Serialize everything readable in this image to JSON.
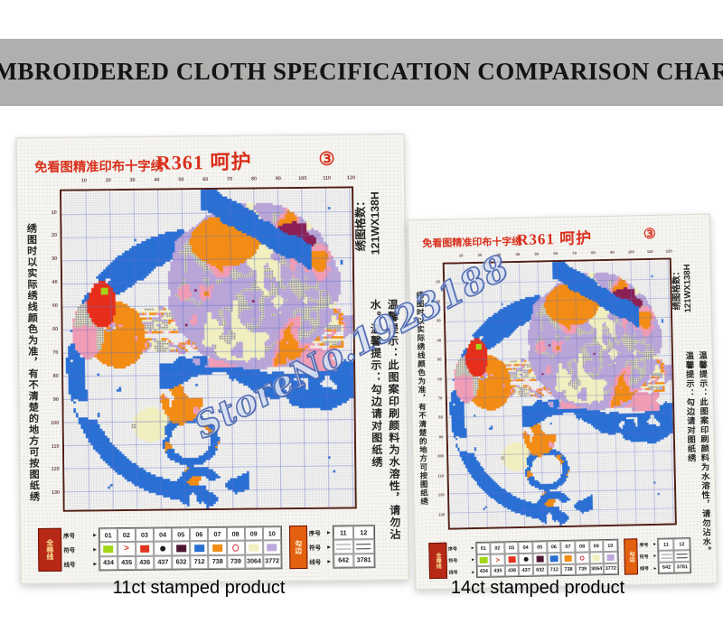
{
  "banner": {
    "title": "EMBROIDERED CLOTH SPECIFICATION COMPARISON CHART",
    "bg_color": "#b0afad",
    "text_color": "#141414"
  },
  "watermark": {
    "text": "StoreNo.1923188"
  },
  "captions": {
    "left": "11ct stamped product",
    "right": "14ct stamped product"
  },
  "sheet": {
    "brand": "免看图精准印布十字绣",
    "title": "R361 呵护",
    "badge": "③",
    "note_left": "绣图时以实际绣线颜色为准，有不清楚的地方可按图纸绣",
    "grid_count_label": "绣图格数：",
    "grid_count_value": "121WX138H",
    "tips": "温馨提示：此图案印刷颜料为水溶性，请勿沾水。温馨提示：勾边请对图纸绣",
    "accent_red": "#d9301c",
    "axis_top": [
      "10",
      "20",
      "30",
      "40",
      "50",
      "60",
      "70",
      "80",
      "90",
      "100",
      "110",
      "120"
    ],
    "axis_left": [
      "10",
      "20",
      "30",
      "40",
      "50",
      "60",
      "70",
      "80",
      "90",
      "100",
      "110",
      "120",
      "130"
    ],
    "legend": {
      "arrow": "▸",
      "block1": "全棉线",
      "block2": "勾边",
      "row_labels": [
        "序号",
        "符号",
        "线号"
      ],
      "entries": [
        {
          "no": "01",
          "symbol": "square",
          "color": "#a4d51a",
          "code": "434"
        },
        {
          "no": "02",
          "symbol": "char",
          "char": ">",
          "color": "#d23a24",
          "code": "435"
        },
        {
          "no": "03",
          "symbol": "square",
          "color": "#e23420",
          "code": "436"
        },
        {
          "no": "04",
          "symbol": "dot",
          "color": "#1a1a1a",
          "code": "437"
        },
        {
          "no": "05",
          "symbol": "square",
          "color": "#4e1733",
          "code": "632"
        },
        {
          "no": "06",
          "symbol": "square",
          "color": "#2a6fd4",
          "code": "712"
        },
        {
          "no": "07",
          "symbol": "square",
          "color": "#f28c15",
          "code": "738"
        },
        {
          "no": "08",
          "symbol": "ring",
          "color": "#d23a4a",
          "code": "739"
        },
        {
          "no": "09",
          "symbol": "square",
          "color": "#f1eec0",
          "code": "3064"
        },
        {
          "no": "10",
          "symbol": "square-pattern",
          "color": "#bda9dc",
          "code": "3772"
        }
      ],
      "entries2": [
        {
          "no": "11",
          "symbol": "dashes",
          "color": "#9a9a9a",
          "code": "642"
        },
        {
          "no": "12",
          "symbol": "dashes",
          "color": "#3a3a3a",
          "code": "3781"
        }
      ]
    },
    "palette": {
      "blue": "#2a6fd4",
      "orange": "#f28c15",
      "pink": "#f09cb4",
      "paleYellow": "#f1eec0",
      "lavender": "#b9a5d8",
      "maroon": "#8c2055",
      "red": "#e62e1b",
      "green": "#a4d51a",
      "speckleBase": "#f2efdc",
      "speckleDot": "#3c3c3c",
      "gridMinor": "rgba(150,156,178,0.20)",
      "gridMajor": "rgba(96,112,200,0.50)",
      "paper": "#f9f8f4"
    }
  }
}
